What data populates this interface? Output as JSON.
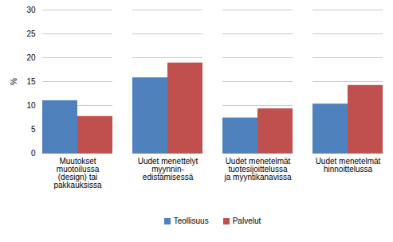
{
  "chart_data": {
    "type": "bar",
    "categories": [
      "Muutokset\nmuotoilussa\n(design) tai\npakkauksissa",
      "Uudet menettelyt\nmyynnin-\nedistämisessä",
      "Uudet menetelmät\ntuotesijoittelussa\nja myyntikanavissa",
      "Uudet menetelmät\nhinnoittelussa"
    ],
    "series": [
      {
        "name": "Teollisuus",
        "color": "#4f81bd",
        "values": [
          11.0,
          15.8,
          7.4,
          10.3
        ]
      },
      {
        "name": "Palvelut",
        "color": "#c0504d",
        "values": [
          7.7,
          18.9,
          9.3,
          14.2
        ]
      }
    ],
    "y_label": "%",
    "ylim": [
      0,
      30
    ],
    "yticks": [
      0,
      5,
      10,
      15,
      20,
      25,
      30
    ],
    "grid": true,
    "legend": "bottom"
  }
}
